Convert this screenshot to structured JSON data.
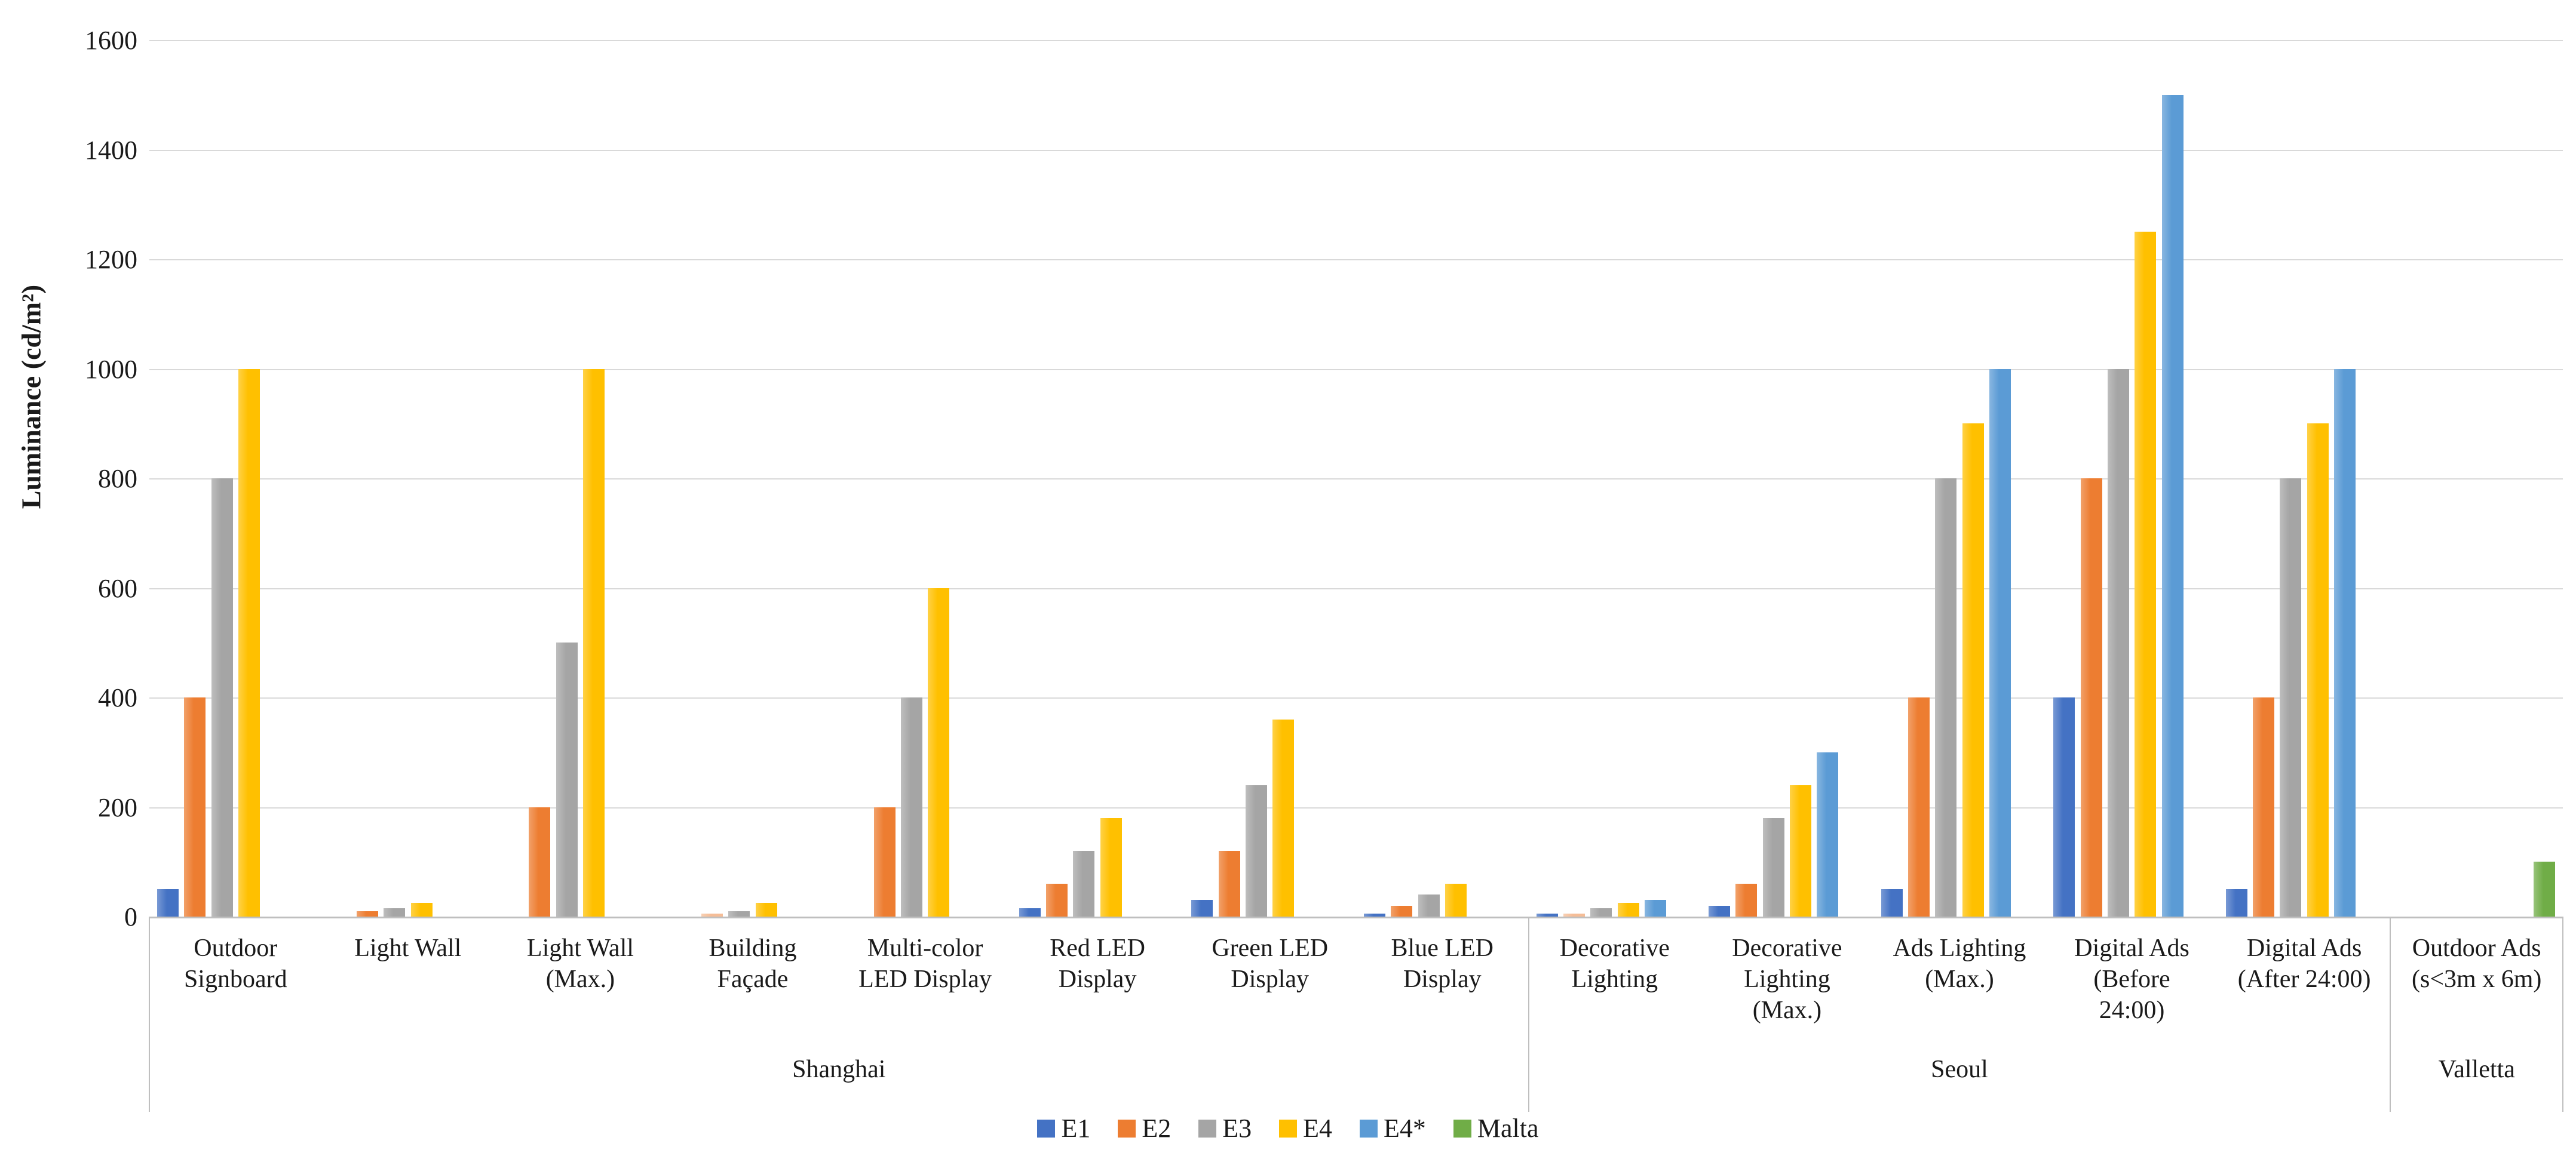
{
  "chart_data": {
    "type": "bar",
    "title": "",
    "ylabel": "Luminance (cd/m²)",
    "xlabel": "",
    "ylim": [
      0,
      1600
    ],
    "ytick_step": 200,
    "ytick_labels": [
      "0",
      "200",
      "400",
      "600",
      "800",
      "1000",
      "1200",
      "1400",
      "1600"
    ],
    "grid": "horizontal",
    "legend_position": "bottom",
    "series": [
      {
        "name": "E1",
        "color": "#4472C4"
      },
      {
        "name": "E2",
        "color": "#ED7D31"
      },
      {
        "name": "E3",
        "color": "#A5A5A5"
      },
      {
        "name": "E4",
        "color": "#FFC000"
      },
      {
        "name": "E4*",
        "color": "#5B9BD5"
      },
      {
        "name": "Malta",
        "color": "#70AD47"
      }
    ],
    "cities": [
      {
        "name": "Shanghai",
        "group_count": 8
      },
      {
        "name": "Seoul",
        "group_count": 5
      },
      {
        "name": "Valletta",
        "group_count": 1
      }
    ],
    "groups": [
      {
        "label": "Outdoor\nSignboard",
        "city": "Shanghai",
        "values": {
          "E1": 50,
          "E2": 400,
          "E3": 800,
          "E4": 1000,
          "E4*": null,
          "Malta": null
        }
      },
      {
        "label": "Light Wall",
        "city": "Shanghai",
        "values": {
          "E1": null,
          "E2": 10,
          "E3": 15,
          "E4": 25,
          "E4*": null,
          "Malta": null
        }
      },
      {
        "label": "Light Wall\n(Max.)",
        "city": "Shanghai",
        "values": {
          "E1": null,
          "E2": 200,
          "E3": 500,
          "E4": 1000,
          "E4*": null,
          "Malta": null
        }
      },
      {
        "label": "Building\nFaçade",
        "city": "Shanghai",
        "values": {
          "E1": null,
          "E2": 5,
          "E3": 10,
          "E4": 25,
          "E4*": null,
          "Malta": null
        },
        "pale": [
          "E2"
        ]
      },
      {
        "label": "Multi-color\nLED Display",
        "city": "Shanghai",
        "values": {
          "E1": null,
          "E2": 200,
          "E3": 400,
          "E4": 600,
          "E4*": null,
          "Malta": null
        }
      },
      {
        "label": "Red LED\nDisplay",
        "city": "Shanghai",
        "values": {
          "E1": 15,
          "E2": 60,
          "E3": 120,
          "E4": 180,
          "E4*": null,
          "Malta": null
        }
      },
      {
        "label": "Green LED\nDisplay",
        "city": "Shanghai",
        "values": {
          "E1": 30,
          "E2": 120,
          "E3": 240,
          "E4": 360,
          "E4*": null,
          "Malta": null
        }
      },
      {
        "label": "Blue LED\nDisplay",
        "city": "Shanghai",
        "values": {
          "E1": 5,
          "E2": 20,
          "E3": 40,
          "E4": 60,
          "E4*": null,
          "Malta": null
        }
      },
      {
        "label": "Decorative\nLighting",
        "city": "Seoul",
        "values": {
          "E1": 5,
          "E2": 5,
          "E3": 15,
          "E4": 25,
          "E4*": 30,
          "Malta": null
        },
        "pale": [
          "E2"
        ]
      },
      {
        "label": "Decorative\nLighting\n(Max.)",
        "city": "Seoul",
        "values": {
          "E1": 20,
          "E2": 60,
          "E3": 180,
          "E4": 240,
          "E4*": 300,
          "Malta": null
        }
      },
      {
        "label": "Ads Lighting\n(Max.)",
        "city": "Seoul",
        "values": {
          "E1": 50,
          "E2": 400,
          "E3": 800,
          "E4": 900,
          "E4*": 1000,
          "Malta": null
        }
      },
      {
        "label": "Digital Ads\n(Before\n24:00)",
        "city": "Seoul",
        "values": {
          "E1": 400,
          "E2": 800,
          "E3": 1000,
          "E4": 1250,
          "E4*": 1500,
          "Malta": null
        }
      },
      {
        "label": "Digital Ads\n(After 24:00)",
        "city": "Seoul",
        "values": {
          "E1": 50,
          "E2": 400,
          "E3": 800,
          "E4": 900,
          "E4*": 1000,
          "Malta": null
        }
      },
      {
        "label": "Outdoor Ads\n(s<3m x 6m)",
        "city": "Valletta",
        "values": {
          "E1": null,
          "E2": null,
          "E3": null,
          "E4": null,
          "E4*": null,
          "Malta": 100
        }
      }
    ]
  }
}
